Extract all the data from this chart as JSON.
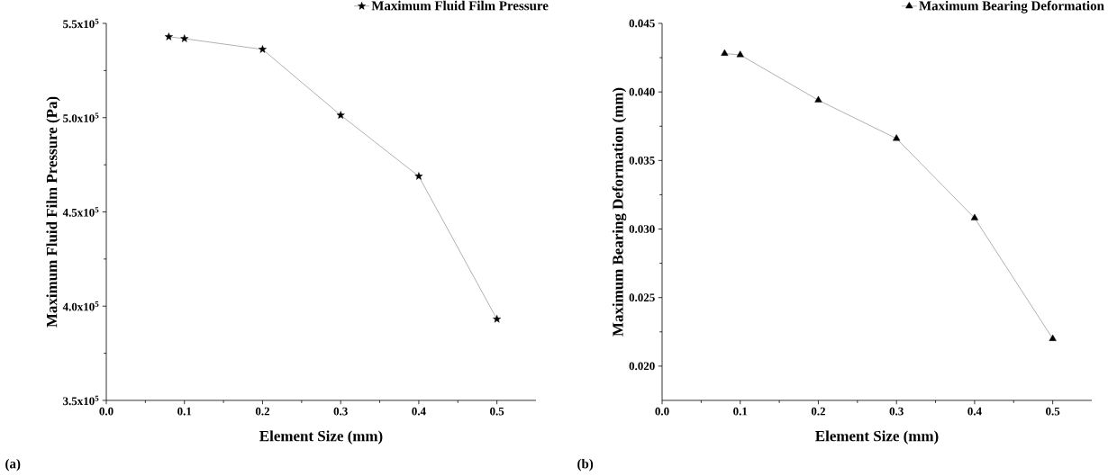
{
  "chart_data": [
    {
      "type": "line",
      "xlabel": "Element Size (mm)",
      "ylabel": "Maximum Fluid Film Pressure (Pa)",
      "annotations": [
        "(a)"
      ],
      "x": [
        0.08,
        0.1,
        0.2,
        0.3,
        0.4,
        0.5
      ],
      "series": [
        {
          "name": "Maximum Fluid Film Pressure",
          "color": "#3a3a3a",
          "values": [
            542900,
            541900,
            536200,
            501300,
            468900,
            393100
          ]
        }
      ],
      "xlim": [
        0,
        0.55
      ],
      "ylim": [
        350000,
        550000
      ],
      "xticks": [
        {
          "value": 0,
          "label": "0.0"
        },
        0.1,
        0.2,
        0.3,
        0.4,
        0.5
      ],
      "yticks": [
        {
          "value": 350000,
          "label": "3.5x10$^{5}$"
        },
        {
          "value": 400000,
          "label": "4.0x10$^{5}$"
        },
        {
          "value": 450000,
          "label": "4.5x10$^{5}$"
        },
        {
          "value": 500000,
          "label": "5.0x10$^{5}$"
        },
        {
          "value": 550000,
          "label": "5.5x10$^{5}$"
        }
      ],
      "marker": "star",
      "legend": "top right",
      "grid": false
    },
    {
      "type": "line",
      "xlabel": "Element Size (mm)",
      "ylabel": "Maximum Bearing Deformation (mm)",
      "annotations": [
        "(b)"
      ],
      "x": [
        0.08,
        0.1,
        0.2,
        0.3,
        0.4,
        0.5
      ],
      "series": [
        {
          "name": "Maximum Bearing Deformation",
          "color": "#3a3a3a",
          "values": [
            0.0428,
            0.0427,
            0.0394,
            0.0366,
            0.0308,
            0.022
          ]
        }
      ],
      "xlim": [
        0,
        0.55
      ],
      "ylim": [
        0.0175,
        0.045
      ],
      "xticks": [
        {
          "value": 0,
          "label": "0.0"
        },
        0.1,
        0.2,
        0.3,
        0.4,
        0.5
      ],
      "yticks": [
        {
          "value": 0.02,
          "label": "0.020"
        },
        {
          "value": 0.025,
          "label": "0.025"
        },
        {
          "value": 0.03,
          "label": "0.030"
        },
        {
          "value": 0.035,
          "label": "0.035"
        },
        {
          "value": 0.04,
          "label": "0.040"
        },
        {
          "value": 0.045,
          "label": "0.045"
        }
      ],
      "marker": "triangle",
      "legend": "top right",
      "grid": false
    }
  ]
}
